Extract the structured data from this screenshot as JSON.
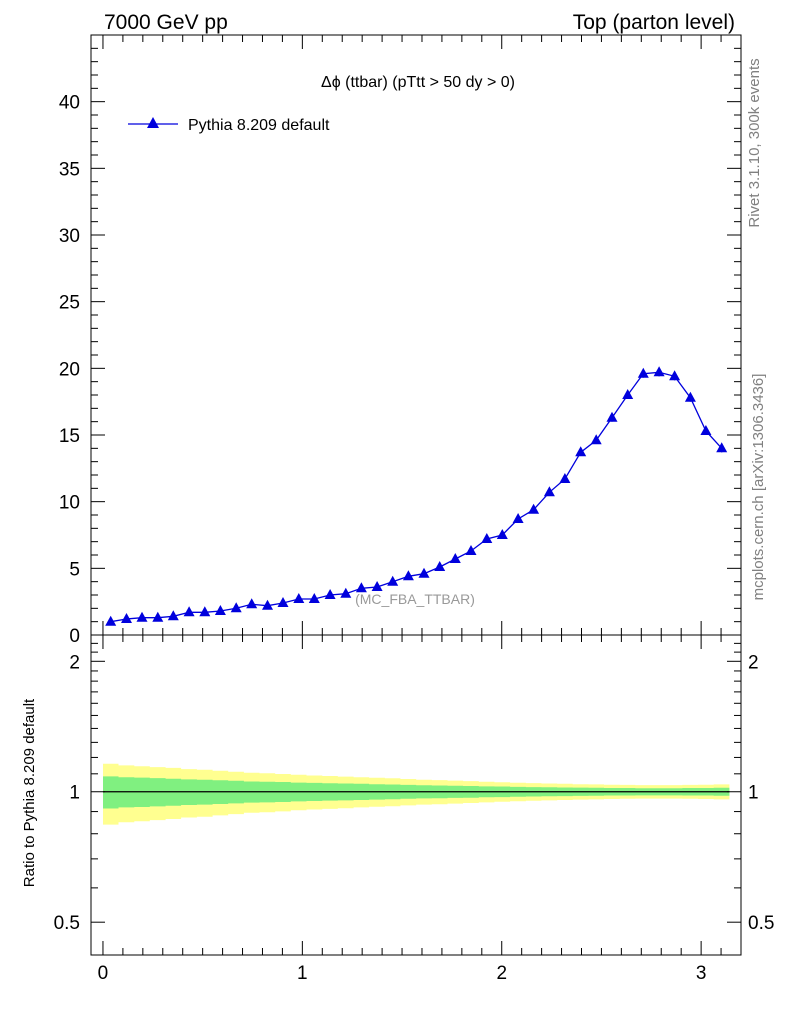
{
  "header": {
    "left": "7000 GeV pp",
    "right": "Top (parton level)"
  },
  "side_labels": {
    "rivet": "Rivet 3.1.10,  300k events",
    "mcplots": "mcplots.cern.ch [arXiv:1306.3436]"
  },
  "chart_data": {
    "type": "line",
    "title": "Δϕ (ttbar) (pTtt > 50 dy > 0)",
    "analysis_label": "(MC_FBA_TTBAR)",
    "xlim": [
      -0.06,
      3.2
    ],
    "ylim": [
      0,
      45
    ],
    "x_ticks": [
      0,
      1,
      2,
      3
    ],
    "x_tick_labels": [
      "0",
      "1",
      "2",
      "3"
    ],
    "y_ticks": [
      0,
      5,
      10,
      15,
      20,
      25,
      30,
      35,
      40
    ],
    "y_tick_labels": [
      "0",
      "5",
      "10",
      "15",
      "20",
      "25",
      "30",
      "35",
      "40"
    ],
    "legend_position": "top-left",
    "series": [
      {
        "name": "Pythia 8.209 default",
        "color": "#0000dd",
        "marker": "triangle",
        "x": [
          0.039,
          0.118,
          0.196,
          0.275,
          0.353,
          0.432,
          0.511,
          0.589,
          0.668,
          0.746,
          0.825,
          0.903,
          0.982,
          1.06,
          1.139,
          1.218,
          1.296,
          1.375,
          1.453,
          1.532,
          1.61,
          1.689,
          1.767,
          1.846,
          1.925,
          2.003,
          2.082,
          2.16,
          2.239,
          2.317,
          2.396,
          2.474,
          2.553,
          2.632,
          2.71,
          2.789,
          2.867,
          2.946,
          3.024,
          3.103
        ],
        "y": [
          1.0,
          1.2,
          1.3,
          1.3,
          1.4,
          1.7,
          1.7,
          1.8,
          2.0,
          2.3,
          2.2,
          2.4,
          2.7,
          2.7,
          3.0,
          3.1,
          3.5,
          3.6,
          4.0,
          4.4,
          4.6,
          5.1,
          5.7,
          6.3,
          7.2,
          7.5,
          8.7,
          9.4,
          10.7,
          11.7,
          13.7,
          14.6,
          16.3,
          18.0,
          19.6,
          19.7,
          19.4,
          17.8,
          15.3,
          14.0
        ],
        "err": [
          0.1,
          0.1,
          0.1,
          0.1,
          0.1,
          0.1,
          0.1,
          0.1,
          0.1,
          0.1,
          0.1,
          0.1,
          0.1,
          0.1,
          0.1,
          0.1,
          0.1,
          0.1,
          0.1,
          0.1,
          0.1,
          0.1,
          0.1,
          0.1,
          0.1,
          0.15,
          0.15,
          0.15,
          0.2,
          0.2,
          0.2,
          0.25,
          0.3,
          0.3,
          0.3,
          0.3,
          0.3,
          0.3,
          0.3,
          0.3
        ]
      }
    ],
    "ratio": {
      "ylabel": "Ratio to Pythia 8.209 default",
      "ylim": [
        0.42,
        2.3
      ],
      "log_scale": true,
      "y_ticks": [
        0.5,
        1,
        2
      ],
      "y_tick_labels": [
        "0.5",
        "1",
        "2"
      ],
      "band_x_edges": [
        0.0,
        0.078,
        0.157,
        0.235,
        0.314,
        0.392,
        0.471,
        0.55,
        0.628,
        0.707,
        0.785,
        0.864,
        0.942,
        1.021,
        1.1,
        1.178,
        1.257,
        1.335,
        1.414,
        1.492,
        1.571,
        1.649,
        1.728,
        1.806,
        1.885,
        1.963,
        2.042,
        2.121,
        2.199,
        2.278,
        2.356,
        2.435,
        2.513,
        2.592,
        2.67,
        2.749,
        2.827,
        2.906,
        2.985,
        3.063,
        3.142
      ],
      "inner_band_halfwidth": [
        0.085,
        0.08,
        0.078,
        0.075,
        0.072,
        0.068,
        0.066,
        0.063,
        0.06,
        0.056,
        0.055,
        0.053,
        0.05,
        0.048,
        0.046,
        0.045,
        0.043,
        0.041,
        0.039,
        0.037,
        0.035,
        0.034,
        0.032,
        0.031,
        0.029,
        0.028,
        0.026,
        0.025,
        0.024,
        0.023,
        0.022,
        0.021,
        0.02,
        0.02,
        0.019,
        0.019,
        0.019,
        0.02,
        0.02,
        0.021
      ],
      "outer_band_halfwidth": [
        0.16,
        0.15,
        0.145,
        0.14,
        0.135,
        0.128,
        0.124,
        0.118,
        0.112,
        0.106,
        0.103,
        0.099,
        0.094,
        0.09,
        0.087,
        0.084,
        0.08,
        0.077,
        0.074,
        0.07,
        0.066,
        0.064,
        0.061,
        0.058,
        0.055,
        0.052,
        0.049,
        0.047,
        0.045,
        0.043,
        0.041,
        0.04,
        0.038,
        0.037,
        0.036,
        0.036,
        0.036,
        0.037,
        0.038,
        0.04
      ],
      "inner_color": "#80f080",
      "outer_color": "#ffff90"
    }
  }
}
